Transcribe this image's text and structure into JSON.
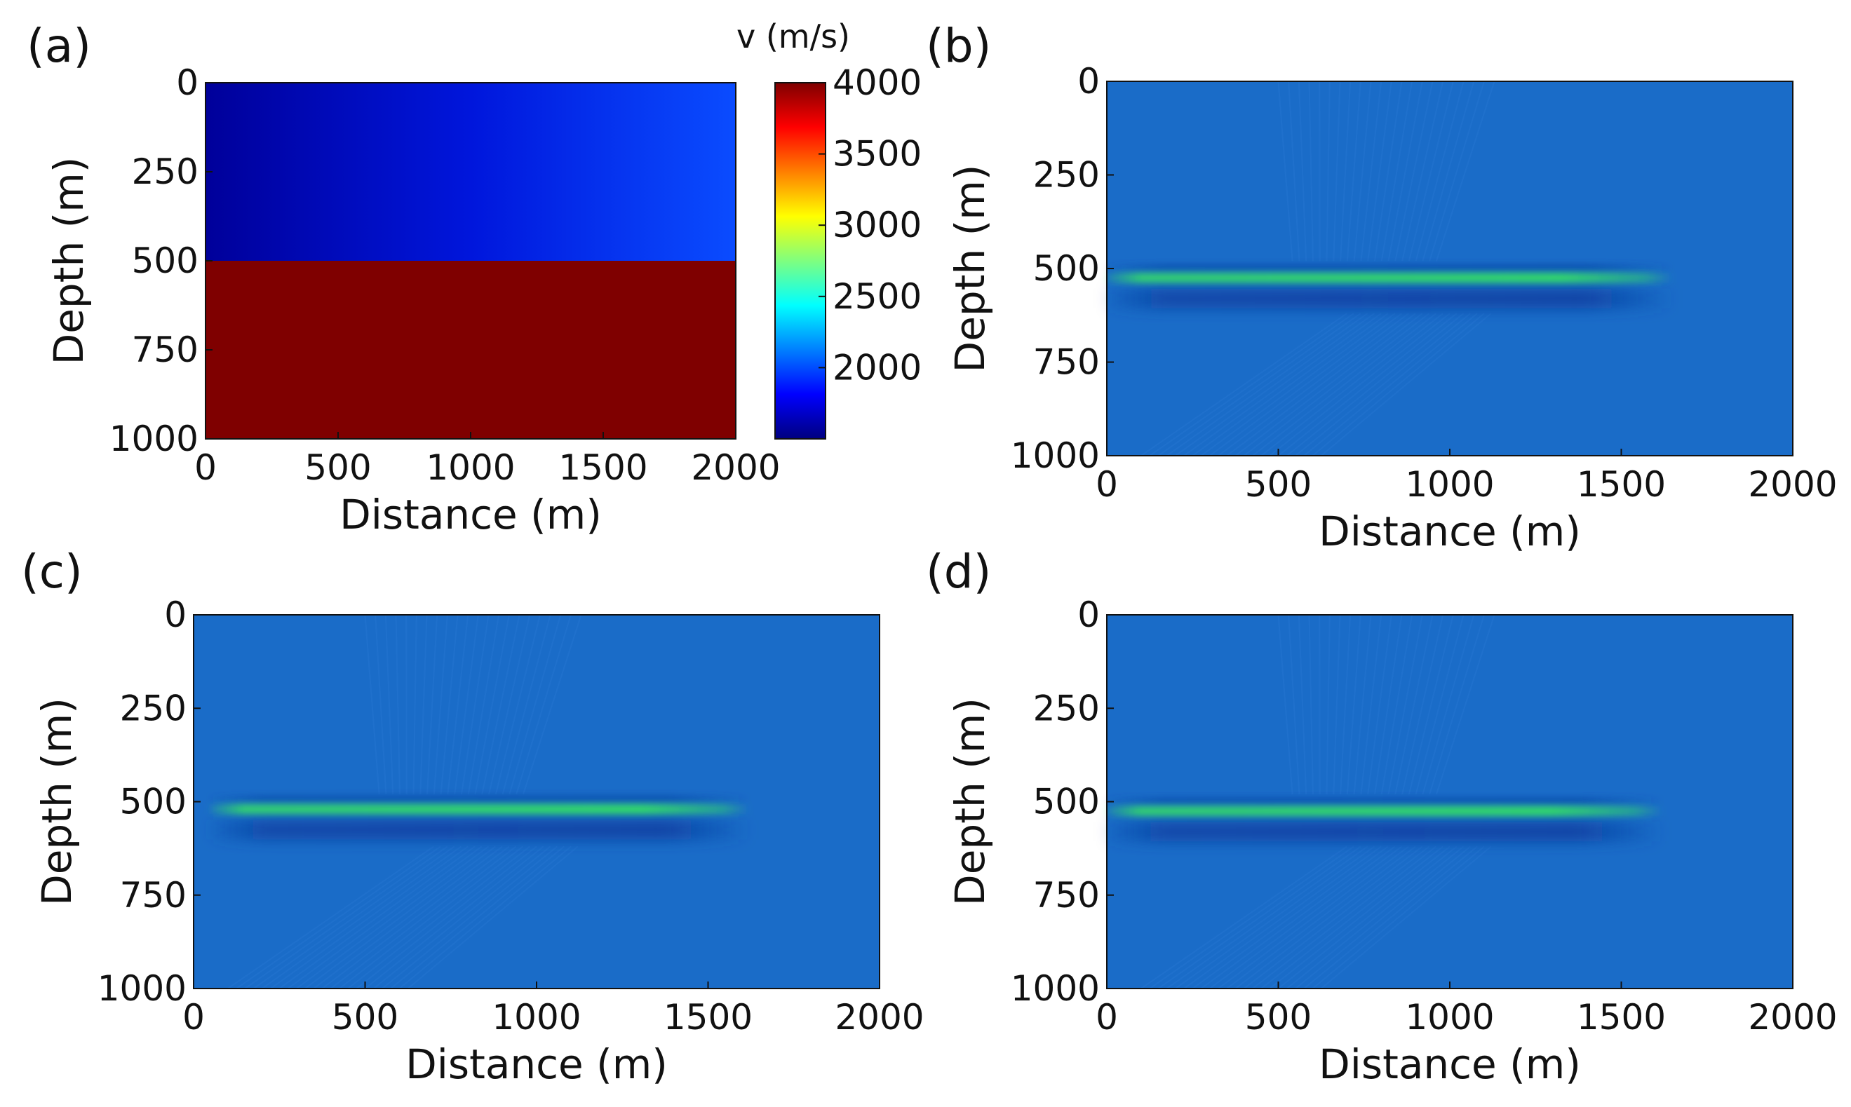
{
  "colors": {
    "background": "#1a6cc8",
    "reflector_peak": "#33dd66",
    "reflector_trough": "#0a3ea0",
    "axis": "#111111",
    "jet": [
      "#00007f",
      "#0000ff",
      "#007fff",
      "#00ffff",
      "#7fff7f",
      "#ffff00",
      "#ff7f00",
      "#ff0000",
      "#7f0000"
    ]
  },
  "chart_data": [
    {
      "panel_label": "(a)",
      "type": "heatmap",
      "title": "",
      "xlabel": "Distance (m)",
      "ylabel": "Depth (m)",
      "xlim": [
        0,
        2000
      ],
      "ylim": [
        0,
        1000
      ],
      "xticks": [
        "0",
        "500",
        "1000",
        "1500",
        "2000"
      ],
      "yticks": [
        "0",
        "250",
        "500",
        "750",
        "1000"
      ],
      "colorbar": {
        "label": "v (m/s)",
        "range": [
          1500,
          4000
        ],
        "ticks": [
          "2000",
          "2500",
          "3000",
          "3500",
          "4000"
        ]
      },
      "layers": [
        {
          "depth_top": 0,
          "depth_bottom": 500,
          "velocity_at_x0": 1500,
          "velocity_at_x2000": 2000,
          "gradient": "lateral"
        },
        {
          "depth_top": 500,
          "depth_bottom": 1000,
          "velocity": 4000
        }
      ]
    },
    {
      "panel_label": "(b)",
      "type": "heatmap",
      "xlabel": "Distance (m)",
      "ylabel": "Depth (m)",
      "xlim": [
        0,
        2000
      ],
      "ylim": [
        0,
        1000
      ],
      "xticks": [
        "0",
        "500",
        "1000",
        "1500",
        "2000"
      ],
      "yticks": [
        "0",
        "250",
        "500",
        "750",
        "1000"
      ],
      "reflector": {
        "depth": 525,
        "x_start": 0,
        "x_end": 1650,
        "trough_depth": 580
      }
    },
    {
      "panel_label": "(c)",
      "type": "heatmap",
      "xlabel": "Distance (m)",
      "ylabel": "Depth (m)",
      "xlim": [
        0,
        2000
      ],
      "ylim": [
        0,
        1000
      ],
      "xticks": [
        "0",
        "500",
        "1000",
        "1500",
        "2000"
      ],
      "yticks": [
        "0",
        "250",
        "500",
        "750",
        "1000"
      ],
      "reflector": {
        "depth": 520,
        "x_start": 50,
        "x_end": 1620,
        "trough_depth": 575
      }
    },
    {
      "panel_label": "(d)",
      "type": "heatmap",
      "xlabel": "Distance (m)",
      "ylabel": "Depth (m)",
      "xlim": [
        0,
        2000
      ],
      "ylim": [
        0,
        1000
      ],
      "xticks": [
        "0",
        "500",
        "1000",
        "1500",
        "2000"
      ],
      "yticks": [
        "0",
        "250",
        "500",
        "750",
        "1000"
      ],
      "reflector": {
        "depth": 525,
        "x_start": 0,
        "x_end": 1620,
        "trough_depth": 580
      }
    }
  ]
}
